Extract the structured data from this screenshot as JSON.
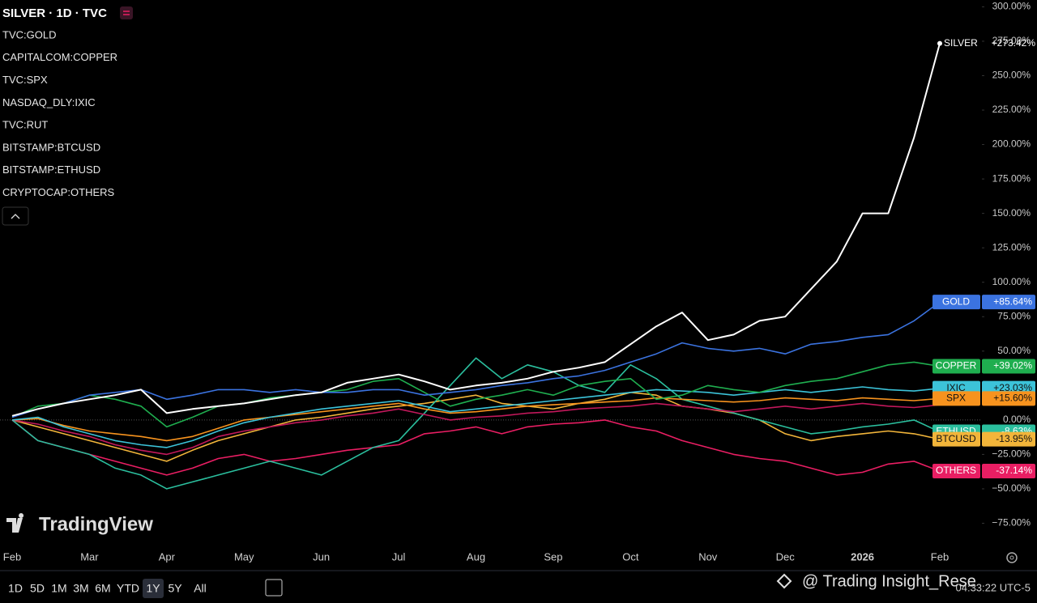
{
  "chart_data": {
    "type": "line",
    "title": "SILVER · 1D · TVC",
    "legend": [
      "TVC:GOLD",
      "CAPITALCOM:COPPER",
      "TVC:SPX",
      "NASDAQ_DLY:IXIC",
      "TVC:RUT",
      "BITSTAMP:BTCUSD",
      "BITSTAMP:ETHUSD",
      "CRYPTOCAP:OTHERS"
    ],
    "categories": [
      "Feb",
      null,
      null,
      "Mar",
      null,
      null,
      "Apr",
      null,
      null,
      "May",
      null,
      null,
      "Jun",
      null,
      null,
      "Jul",
      null,
      null,
      "Aug",
      null,
      null,
      "Sep",
      null,
      null,
      "Oct",
      null,
      null,
      "Nov",
      null,
      null,
      "Dec",
      null,
      null,
      "2026",
      null,
      null,
      "Feb"
    ],
    "series": [
      {
        "name": "SILVER",
        "color": "#ffffff",
        "values": [
          3,
          8,
          12,
          15,
          18,
          22,
          5,
          8,
          10,
          12,
          15,
          18,
          20,
          27,
          30,
          33,
          28,
          22,
          25,
          27,
          30,
          35,
          38,
          42,
          55,
          68,
          78,
          58,
          62,
          72,
          75,
          95,
          115,
          150,
          150,
          205,
          273.42
        ],
        "value_labels": {
          "36": "+273.42%"
        }
      },
      {
        "name": "GOLD",
        "color": "#3b73e0",
        "values": [
          2,
          8,
          12,
          18,
          20,
          22,
          15,
          18,
          22,
          22,
          20,
          22,
          20,
          20,
          22,
          22,
          18,
          20,
          22,
          25,
          27,
          30,
          32,
          36,
          42,
          48,
          56,
          52,
          50,
          52,
          48,
          55,
          57,
          60,
          62,
          72,
          85.64
        ],
        "value_labels": {
          "36": "+85.64%"
        }
      },
      {
        "name": "COPPER",
        "color": "#1fae4f",
        "values": [
          2,
          10,
          12,
          18,
          15,
          10,
          -5,
          2,
          10,
          12,
          16,
          18,
          20,
          22,
          28,
          30,
          20,
          10,
          15,
          18,
          22,
          18,
          25,
          28,
          30,
          15,
          18,
          25,
          22,
          20,
          25,
          28,
          30,
          35,
          40,
          42,
          39.02
        ],
        "value_labels": {
          "36": "+39.02%"
        }
      },
      {
        "name": "IXIC",
        "color": "#3cc3d9",
        "values": [
          0,
          2,
          -5,
          -10,
          -15,
          -18,
          -20,
          -15,
          -8,
          -2,
          2,
          5,
          8,
          10,
          12,
          14,
          10,
          6,
          8,
          10,
          12,
          14,
          16,
          18,
          20,
          22,
          21,
          20,
          18,
          20,
          22,
          20,
          22,
          24,
          22,
          21,
          23.03
        ],
        "value_labels": {
          "36": "+23.03%"
        }
      },
      {
        "name": "SPX",
        "color": "#f7931e",
        "values": [
          0,
          1,
          -4,
          -8,
          -10,
          -12,
          -15,
          -12,
          -6,
          0,
          2,
          4,
          6,
          8,
          10,
          12,
          8,
          5,
          6,
          8,
          10,
          11,
          12,
          13,
          14,
          16,
          15,
          14,
          13,
          14,
          16,
          15,
          14,
          16,
          15,
          14,
          15.6
        ],
        "value_labels": {
          "36": "+15.60%"
        }
      },
      {
        "name": "RUT",
        "color": "#c2185b",
        "values": [
          0,
          -3,
          -8,
          -12,
          -18,
          -22,
          -25,
          -20,
          -12,
          -8,
          -5,
          -2,
          0,
          3,
          5,
          8,
          4,
          0,
          2,
          3,
          5,
          6,
          8,
          9,
          10,
          12,
          10,
          8,
          6,
          8,
          10,
          8,
          10,
          12,
          10,
          9,
          11
        ]
      },
      {
        "name": "ETHUSD",
        "color": "#2bbf9e",
        "values": [
          0,
          -15,
          -20,
          -25,
          -35,
          -40,
          -50,
          -45,
          -40,
          -35,
          -30,
          -35,
          -40,
          -30,
          -20,
          -15,
          5,
          25,
          45,
          30,
          40,
          35,
          25,
          20,
          40,
          30,
          15,
          10,
          5,
          0,
          -5,
          -10,
          -8,
          -5,
          -3,
          0,
          -8.63
        ],
        "value_labels": {
          "36": "-8.63%"
        }
      },
      {
        "name": "BTCUSD",
        "color": "#f2b53a",
        "values": [
          0,
          -5,
          -10,
          -15,
          -20,
          -25,
          -30,
          -22,
          -15,
          -10,
          -5,
          0,
          2,
          5,
          8,
          10,
          12,
          15,
          18,
          12,
          10,
          8,
          12,
          15,
          20,
          18,
          10,
          8,
          5,
          0,
          -10,
          -15,
          -12,
          -10,
          -8,
          -10,
          -13.95
        ],
        "value_labels": {
          "36": "-13.95%"
        }
      },
      {
        "name": "OTHERS",
        "color": "#e91e63",
        "values": [
          0,
          -15,
          -20,
          -25,
          -30,
          -35,
          -40,
          -35,
          -28,
          -25,
          -30,
          -28,
          -25,
          -22,
          -20,
          -18,
          -10,
          -8,
          -5,
          -10,
          -5,
          -3,
          -2,
          0,
          -5,
          -8,
          -15,
          -20,
          -25,
          -28,
          -30,
          -35,
          -40,
          -38,
          -32,
          -30,
          -37.14
        ],
        "value_labels": {
          "36": "-37.14%"
        }
      }
    ],
    "ylim": [
      -90,
      302
    ],
    "yticks": [
      {
        "value": -75,
        "label": "−75.00%"
      },
      {
        "value": -50,
        "label": "−50.00%"
      },
      {
        "value": -25,
        "label": "−25.00%"
      },
      {
        "value": 0,
        "label": "0.00%"
      },
      {
        "value": 25,
        "label": "25.00%"
      },
      {
        "value": 50,
        "label": "50.00%"
      },
      {
        "value": 75,
        "label": "75.00%"
      },
      {
        "value": 100,
        "label": "100.00%"
      },
      {
        "value": 125,
        "label": "125.00%"
      },
      {
        "value": 150,
        "label": "150.00%"
      },
      {
        "value": 175,
        "label": "175.00%"
      },
      {
        "value": 200,
        "label": "200.00%"
      },
      {
        "value": 225,
        "label": "225.00%"
      },
      {
        "value": 250,
        "label": "250.00%"
      },
      {
        "value": 275,
        "label": "275.00%"
      },
      {
        "value": 300,
        "label": "300.00%"
      }
    ],
    "watermark": "TradingView",
    "timeframes": [
      "1D",
      "5D",
      "1M",
      "3M",
      "6M",
      "YTD",
      "1Y",
      "5Y",
      "All"
    ],
    "active_timeframe": "1Y",
    "clock": "04:33:22 UTC-5",
    "credit": "@ Trading Insight_Rese"
  }
}
